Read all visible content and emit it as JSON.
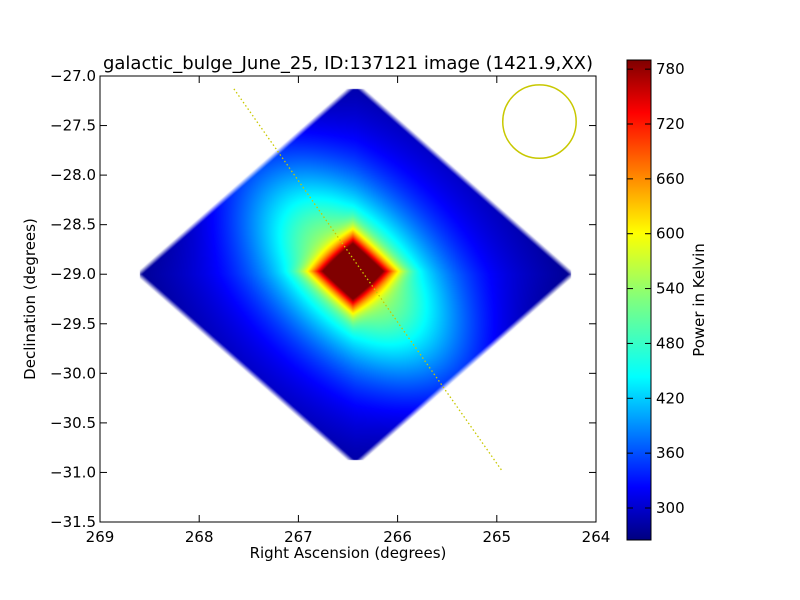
{
  "chart_data": {
    "type": "heatmap",
    "title": "galactic_bulge_June_25, ID:137121 image (1421.9,XX)",
    "xlabel": "Right Ascension (degrees)",
    "ylabel": "Declination (degrees)",
    "xlim": [
      269,
      264
    ],
    "ylim": [
      -31.5,
      -27.0
    ],
    "x_ticks": [
      "269",
      "268",
      "267",
      "266",
      "265",
      "264"
    ],
    "y_ticks": [
      "−27.0",
      "−27.5",
      "−28.0",
      "−28.5",
      "−29.0",
      "−29.5",
      "−30.0",
      "−30.5",
      "−31.0",
      "−31.5"
    ],
    "colorbar": {
      "label": "Power in Kelvin",
      "min": 265,
      "max": 790,
      "ticks": [
        "300",
        "360",
        "420",
        "480",
        "540",
        "600",
        "660",
        "720",
        "780"
      ],
      "colormap": "jet"
    },
    "image_region": {
      "shape": "diamond",
      "vertices_deg": [
        [
          266.43,
          -27.05
        ],
        [
          264.2,
          -29.0
        ],
        [
          266.43,
          -30.95
        ],
        [
          268.65,
          -29.0
        ]
      ],
      "peak": {
        "ra": 266.45,
        "dec": -28.97,
        "value": 790
      },
      "background_value": 275
    },
    "overlays": [
      {
        "kind": "line",
        "style": "dotted",
        "color": "#c8c800",
        "from": [
          267.65,
          -27.13
        ],
        "to": [
          264.95,
          -30.98
        ]
      },
      {
        "kind": "circle",
        "color": "#c8c800",
        "center": [
          264.57,
          -27.46
        ],
        "radius_deg": 0.37
      }
    ]
  }
}
